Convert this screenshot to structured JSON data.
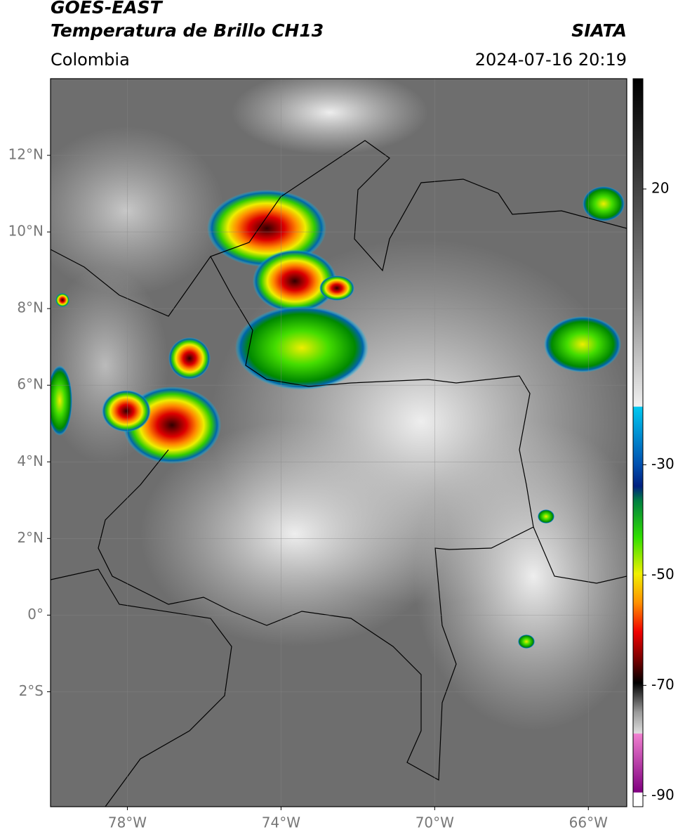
{
  "header": {
    "title": "GOES-EAST",
    "subtitle": "Temperatura de Brillo CH13",
    "region": "Colombia",
    "source": "SIATA",
    "datetime": "2024-07-16 20:19"
  },
  "map": {
    "xlim": [
      -80,
      -65
    ],
    "ylim": [
      -5,
      14
    ],
    "xticks": [
      {
        "value": -78,
        "label": "78°W"
      },
      {
        "value": -74,
        "label": "74°W"
      },
      {
        "value": -70,
        "label": "70°W"
      },
      {
        "value": -66,
        "label": "66°W"
      }
    ],
    "yticks": [
      {
        "value": 12,
        "label": "12°N"
      },
      {
        "value": 10,
        "label": "10°N"
      },
      {
        "value": 8,
        "label": "8°N"
      },
      {
        "value": 6,
        "label": "6°N"
      },
      {
        "value": 4,
        "label": "4°N"
      },
      {
        "value": 2,
        "label": "2°N"
      },
      {
        "value": 0,
        "label": "0°"
      },
      {
        "value": -2,
        "label": "2°S"
      }
    ],
    "grid": true
  },
  "colorbar": {
    "lim": [
      -92,
      40
    ],
    "ticks": [
      20,
      -30,
      -50,
      -70,
      -90
    ]
  }
}
